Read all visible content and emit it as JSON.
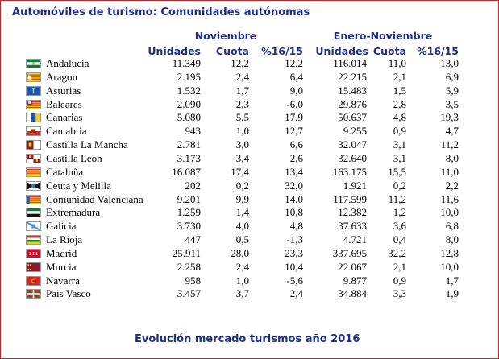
{
  "title": "Automóviles de turismo: Comunidades autónomas",
  "groups": {
    "nov": "Noviembre",
    "ene_nov": "Enero-Noviembre"
  },
  "columns": {
    "nov_unidades": "Unidades",
    "nov_cuota": "Cuota",
    "nov_var": "%16/15",
    "en_unidades": "Unidades",
    "en_cuota": "Cuota",
    "en_var": "%16/15"
  },
  "rows": [
    {
      "name": "Andalucia",
      "flag": "andalucia-flag",
      "nov_u": "11.349",
      "nov_c": "12,2",
      "nov_v": "12,2",
      "en_u": "116.014",
      "en_c": "11,0",
      "en_v": "13,0"
    },
    {
      "name": "Aragon",
      "flag": "aragon-flag",
      "nov_u": "2.195",
      "nov_c": "2,4",
      "nov_v": "6,4",
      "en_u": "22.215",
      "en_c": "2,1",
      "en_v": "6,9"
    },
    {
      "name": "Asturias",
      "flag": "asturias-flag",
      "nov_u": "1.532",
      "nov_c": "1,7",
      "nov_v": "9,0",
      "en_u": "15.483",
      "en_c": "1,5",
      "en_v": "5,9"
    },
    {
      "name": "Baleares",
      "flag": "baleares-flag",
      "nov_u": "2.090",
      "nov_c": "2,3",
      "nov_v": "-6,0",
      "en_u": "29.876",
      "en_c": "2,8",
      "en_v": "3,5"
    },
    {
      "name": "Canarias",
      "flag": "canarias-flag",
      "nov_u": "5.080",
      "nov_c": "5,5",
      "nov_v": "17,9",
      "en_u": "50.637",
      "en_c": "4,8",
      "en_v": "19,3"
    },
    {
      "name": "Cantabria",
      "flag": "cantabria-flag",
      "nov_u": "943",
      "nov_c": "1,0",
      "nov_v": "12,7",
      "en_u": "9.255",
      "en_c": "0,9",
      "en_v": "4,7"
    },
    {
      "name": "Castilla La Mancha",
      "flag": "castilla-la-mancha-flag",
      "nov_u": "2.781",
      "nov_c": "3,0",
      "nov_v": "6,6",
      "en_u": "32.047",
      "en_c": "3,1",
      "en_v": "11,2"
    },
    {
      "name": "Castilla Leon",
      "flag": "castilla-leon-flag",
      "nov_u": "3.173",
      "nov_c": "3,4",
      "nov_v": "2,6",
      "en_u": "32.640",
      "en_c": "3,1",
      "en_v": "8,0"
    },
    {
      "name": "Cataluña",
      "flag": "cataluna-flag",
      "nov_u": "16.087",
      "nov_c": "17,4",
      "nov_v": "13,4",
      "en_u": "163.175",
      "en_c": "15,5",
      "en_v": "11,0"
    },
    {
      "name": "Ceuta y Melilla",
      "flag": "ceuta-melilla-flag",
      "nov_u": "202",
      "nov_c": "0,2",
      "nov_v": "32,0",
      "en_u": "1.921",
      "en_c": "0,2",
      "en_v": "2,2"
    },
    {
      "name": "Comunidad Valenciana",
      "flag": "valenciana-flag",
      "nov_u": "9.201",
      "nov_c": "9,9",
      "nov_v": "14,0",
      "en_u": "117.599",
      "en_c": "11,2",
      "en_v": "11,6"
    },
    {
      "name": "Extremadura",
      "flag": "extremadura-flag",
      "nov_u": "1.259",
      "nov_c": "1,4",
      "nov_v": "10,8",
      "en_u": "12.382",
      "en_c": "1,2",
      "en_v": "10,0"
    },
    {
      "name": "Galicia",
      "flag": "galicia-flag",
      "nov_u": "3.730",
      "nov_c": "4,0",
      "nov_v": "4,8",
      "en_u": "37.633",
      "en_c": "3,6",
      "en_v": "6,8"
    },
    {
      "name": "La Rioja",
      "flag": "la-rioja-flag",
      "nov_u": "447",
      "nov_c": "0,5",
      "nov_v": "-1,3",
      "en_u": "4.721",
      "en_c": "0,4",
      "en_v": "8,0"
    },
    {
      "name": "Madrid",
      "flag": "madrid-flag",
      "nov_u": "25.911",
      "nov_c": "28,0",
      "nov_v": "23,3",
      "en_u": "337.695",
      "en_c": "32,2",
      "en_v": "12,8"
    },
    {
      "name": "Murcia",
      "flag": "murcia-flag",
      "nov_u": "2.258",
      "nov_c": "2,4",
      "nov_v": "10,4",
      "en_u": "22.067",
      "en_c": "2,1",
      "en_v": "10,0"
    },
    {
      "name": "Navarra",
      "flag": "navarra-flag",
      "nov_u": "958",
      "nov_c": "1,0",
      "nov_v": "-5,6",
      "en_u": "9.877",
      "en_c": "0,9",
      "en_v": "1,7"
    },
    {
      "name": "Pais Vasco",
      "flag": "pais-vasco-flag",
      "nov_u": "3.457",
      "nov_c": "3,7",
      "nov_v": "2,4",
      "en_u": "34.884",
      "en_c": "3,3",
      "en_v": "1,9"
    }
  ],
  "footer": "Evolución mercado turismos año 2016",
  "colors": {
    "heading": "#1f2f86",
    "border": "#c0262b"
  }
}
